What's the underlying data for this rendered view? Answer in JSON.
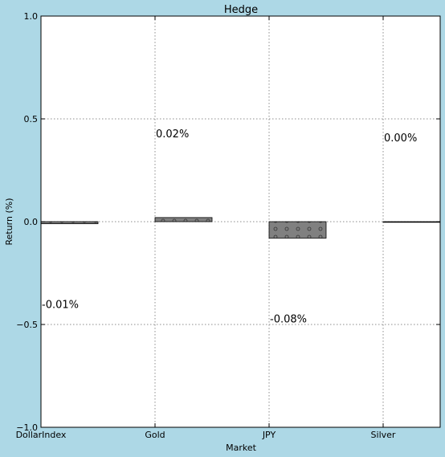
{
  "chart_data": {
    "type": "bar",
    "title": "Hedge",
    "xlabel": "Market",
    "ylabel": "Return (%)",
    "categories": [
      "DollarIndex",
      "Gold",
      "JPY",
      "Silver"
    ],
    "values": [
      -0.01,
      0.02,
      -0.08,
      0.0
    ],
    "data_labels": [
      "-0.01%",
      "0.02%",
      "-0.08%",
      "0.00%"
    ],
    "ylim": [
      -1.0,
      1.0
    ],
    "yticks": [
      -1.0,
      -0.5,
      0.0,
      0.5,
      1.0
    ],
    "ytick_labels": [
      "−1.0",
      "−0.5",
      "0.0",
      "0.5",
      "1.0"
    ],
    "grid": true,
    "bar_color": "#808080",
    "background_color": "#add8e6"
  }
}
